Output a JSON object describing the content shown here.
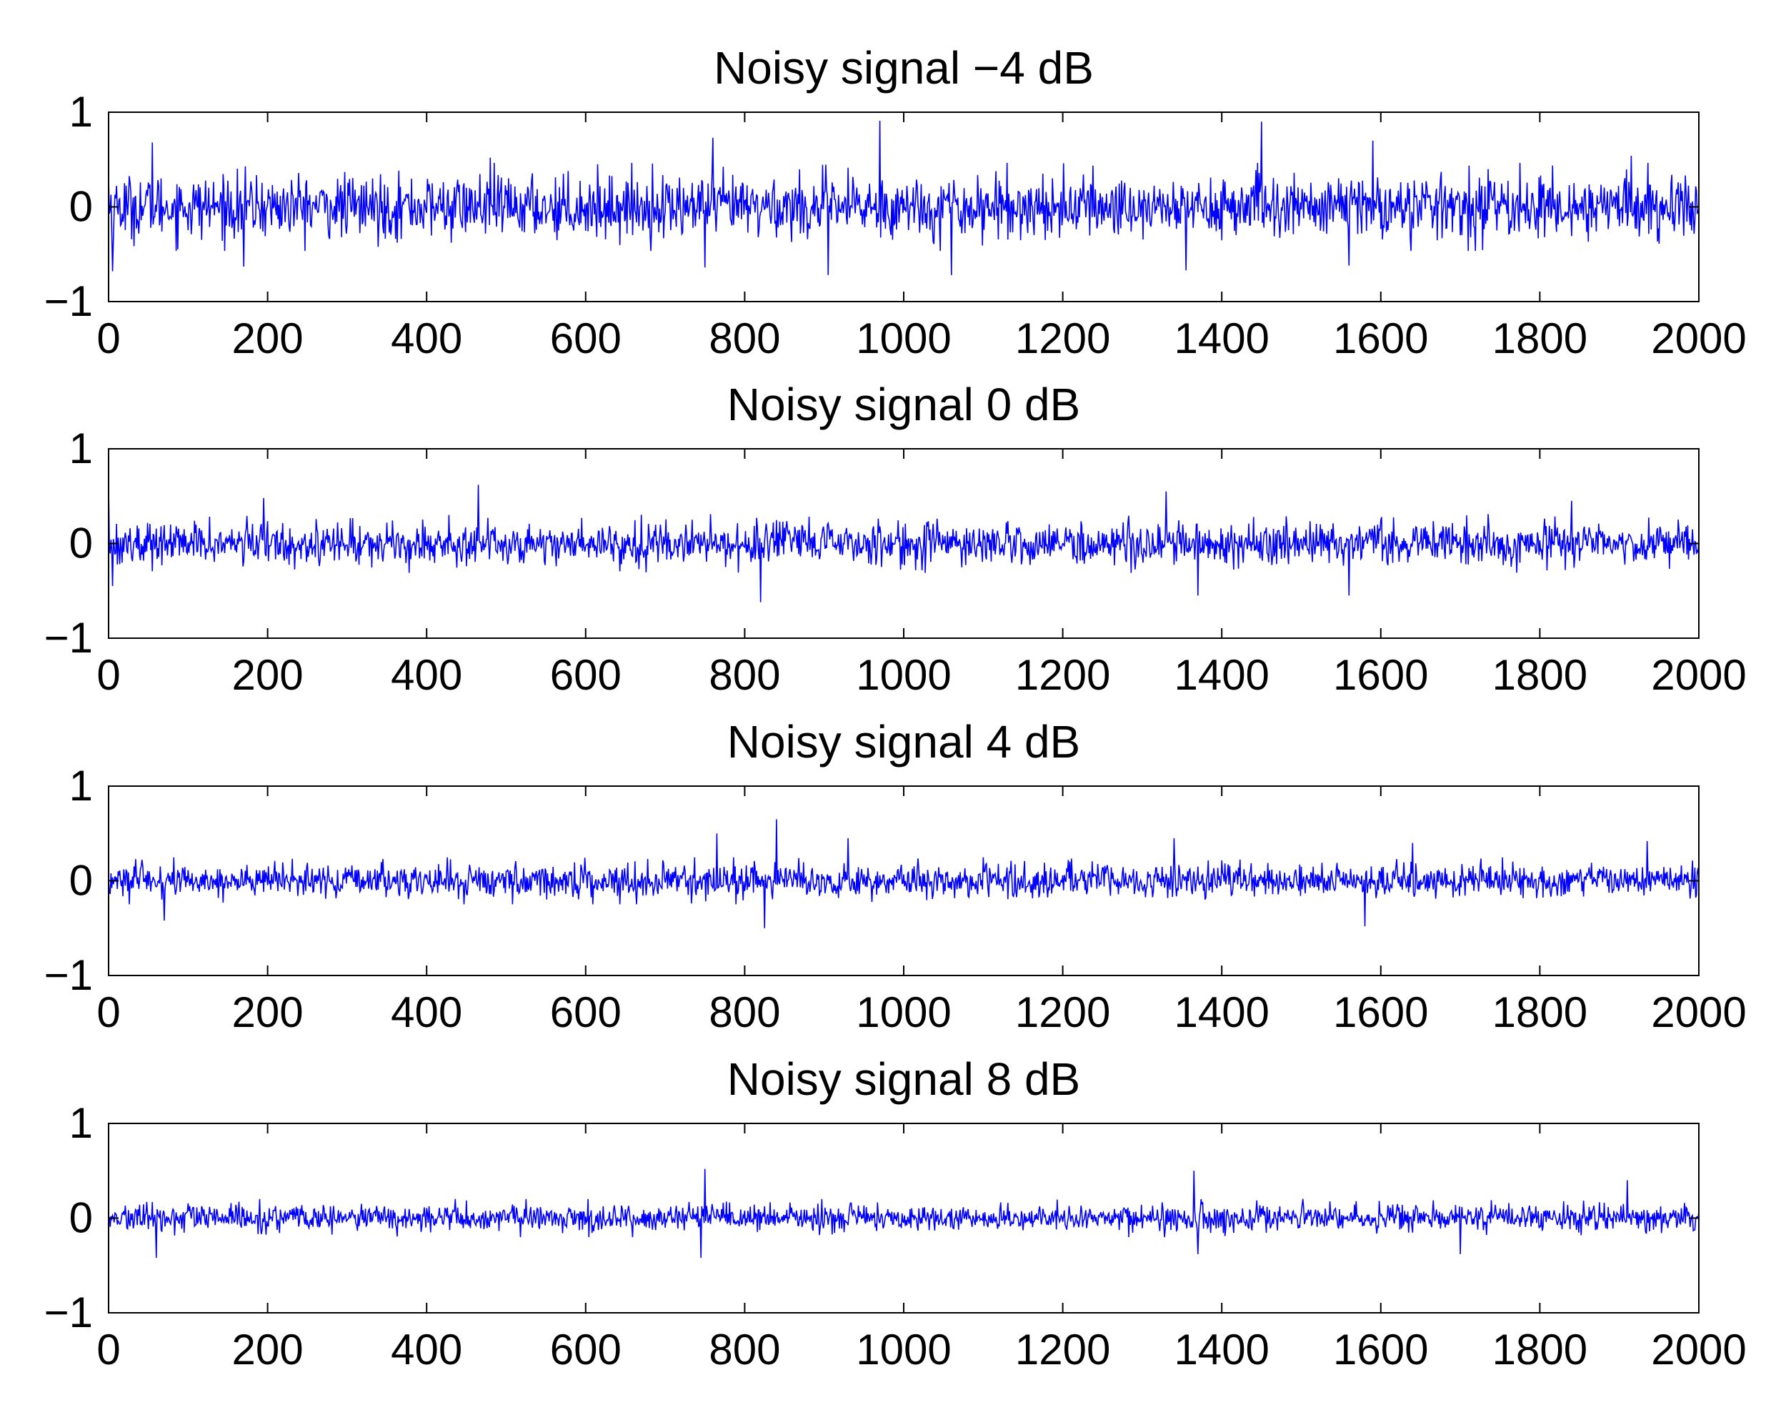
{
  "colors": {
    "signal": "#0000ff",
    "axis": "#000000",
    "background": "#ffffff"
  },
  "chart_data": [
    {
      "type": "line",
      "title": "Noisy signal −4 dB",
      "xlabel": "",
      "ylabel": "",
      "xlim": [
        0,
        2000
      ],
      "ylim": [
        -1,
        1
      ],
      "xticks": [
        "0",
        "200",
        "400",
        "600",
        "800",
        "1000",
        "1200",
        "1400",
        "1600",
        "1800",
        "2000"
      ],
      "yticks": [
        "1",
        "0",
        "−1"
      ],
      "grid": false,
      "noise_amplitude": 0.3,
      "peaks": [
        [
          0,
          0.3
        ],
        [
          5,
          -0.68
        ],
        [
          55,
          0.68
        ],
        [
          170,
          -0.63
        ],
        [
          480,
          0.52
        ],
        [
          760,
          0.73
        ],
        [
          750,
          -0.64
        ],
        [
          970,
          0.91
        ],
        [
          905,
          -0.72
        ],
        [
          1060,
          -0.72
        ],
        [
          1355,
          -0.67
        ],
        [
          1450,
          0.9
        ],
        [
          1560,
          -0.62
        ],
        [
          1590,
          0.7
        ],
        [
          1915,
          0.54
        ]
      ],
      "series": [
        {
          "values": []
        }
      ]
    },
    {
      "type": "line",
      "title": "Noisy signal 0 dB",
      "xlabel": "",
      "ylabel": "",
      "xlim": [
        0,
        2000
      ],
      "ylim": [
        -1,
        1
      ],
      "xticks": [
        "0",
        "200",
        "400",
        "600",
        "800",
        "1000",
        "1200",
        "1400",
        "1600",
        "1800",
        "2000"
      ],
      "yticks": [
        "1",
        "0",
        "−1"
      ],
      "grid": false,
      "noise_amplitude": 0.2,
      "peaks": [
        [
          0,
          0.6
        ],
        [
          5,
          -0.45
        ],
        [
          195,
          0.48
        ],
        [
          465,
          0.62
        ],
        [
          820,
          -0.62
        ],
        [
          1330,
          0.55
        ],
        [
          1370,
          -0.55
        ],
        [
          1560,
          -0.55
        ],
        [
          1840,
          0.45
        ]
      ],
      "series": [
        {
          "values": []
        }
      ]
    },
    {
      "type": "line",
      "title": "Noisy signal 4 dB",
      "xlabel": "",
      "ylabel": "",
      "xlim": [
        0,
        2000
      ],
      "ylim": [
        -1,
        1
      ],
      "xticks": [
        "0",
        "200",
        "400",
        "600",
        "800",
        "1000",
        "1200",
        "1400",
        "1600",
        "1800",
        "2000"
      ],
      "yticks": [
        "1",
        "0",
        "−1"
      ],
      "grid": false,
      "noise_amplitude": 0.16,
      "peaks": [
        [
          70,
          -0.42
        ],
        [
          765,
          0.5
        ],
        [
          840,
          0.65
        ],
        [
          825,
          -0.5
        ],
        [
          930,
          0.45
        ],
        [
          1340,
          0.45
        ],
        [
          1580,
          -0.48
        ],
        [
          1640,
          0.4
        ],
        [
          1935,
          0.42
        ]
      ],
      "series": [
        {
          "values": []
        }
      ]
    },
    {
      "type": "line",
      "title": "Noisy signal 8 dB",
      "xlabel": "",
      "ylabel": "",
      "xlim": [
        0,
        2000
      ],
      "ylim": [
        -1,
        1
      ],
      "xticks": [
        "0",
        "200",
        "400",
        "600",
        "800",
        "1000",
        "1200",
        "1400",
        "1600",
        "1800",
        "2000"
      ],
      "yticks": [
        "1",
        "0",
        "−1"
      ],
      "grid": false,
      "noise_amplitude": 0.13,
      "peaks": [
        [
          60,
          -0.42
        ],
        [
          750,
          0.52
        ],
        [
          745,
          -0.42
        ],
        [
          1365,
          0.5
        ],
        [
          1370,
          -0.38
        ],
        [
          1700,
          -0.38
        ],
        [
          1910,
          0.4
        ]
      ],
      "series": [
        {
          "values": []
        }
      ]
    }
  ]
}
